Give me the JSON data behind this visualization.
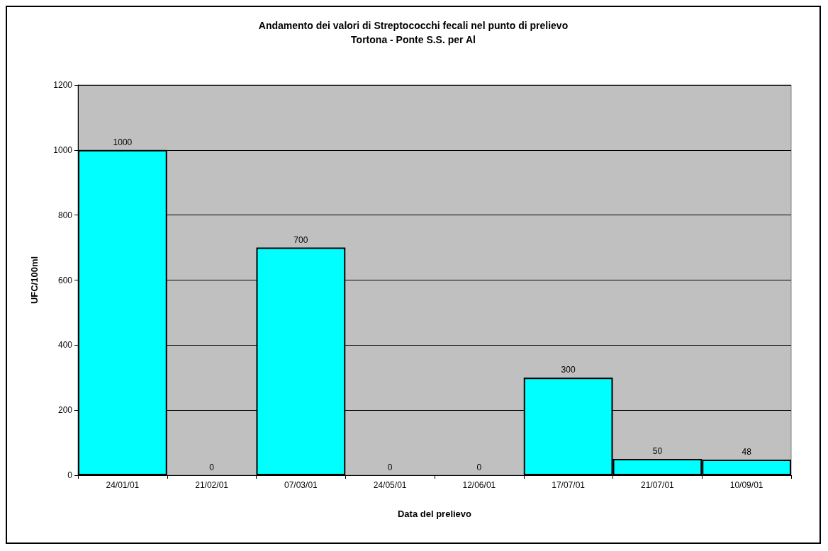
{
  "chart_data": {
    "type": "bar",
    "title": "Andamento dei valori di Streptococchi fecali nel punto di prelievo",
    "subtitle": "Tortona - Ponte S.S. per Al",
    "xlabel": "Data del prelievo",
    "ylabel": "UFC/100ml",
    "categories": [
      "24/01/01",
      "21/02/01",
      "07/03/01",
      "24/05/01",
      "12/06/01",
      "17/07/01",
      "21/07/01",
      "10/09/01"
    ],
    "values": [
      1000,
      0,
      700,
      0,
      0,
      300,
      50,
      48
    ],
    "color": "#00ffff",
    "ylim": [
      0,
      1200
    ],
    "yticks": [
      0,
      200,
      400,
      600,
      800,
      1000,
      1200
    ],
    "grid": true,
    "data_labels": true
  }
}
